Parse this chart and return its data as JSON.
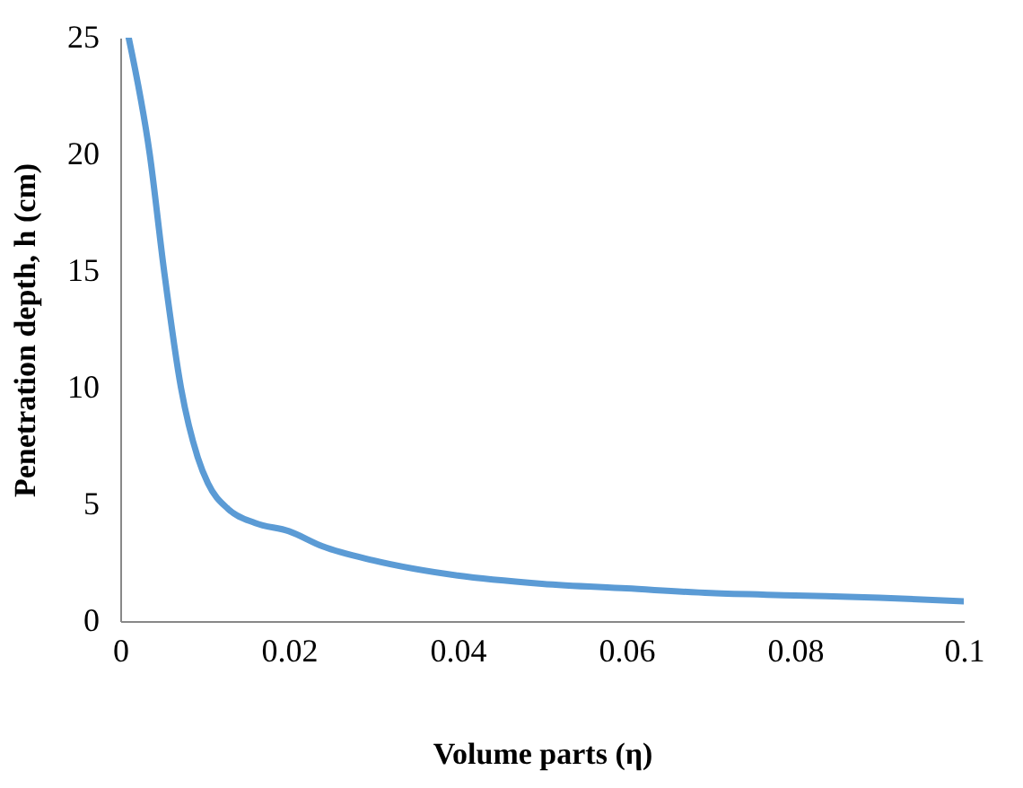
{
  "chart_data": {
    "type": "line",
    "xlabel": "Volume parts (η)",
    "ylabel": "Penetration depth, h (cm)",
    "x": [
      0.001,
      0.0035,
      0.0052,
      0.0072,
      0.0092,
      0.0104,
      0.0128,
      0.016,
      0.02,
      0.024,
      0.03,
      0.04,
      0.05,
      0.06,
      0.07,
      0.08,
      0.09,
      0.1
    ],
    "series": [
      {
        "color": "#5b9bd5",
        "values": [
          25,
          20,
          15,
          10,
          7,
          5.9,
          4.8,
          4.2,
          3.85,
          3.2,
          2.6,
          1.95,
          1.6,
          1.4,
          1.2,
          1.1,
          1.0,
          0.85
        ]
      }
    ],
    "xlim": [
      0,
      0.1
    ],
    "xticks": [
      0,
      0.02,
      0.04,
      0.06,
      0.08,
      0.1
    ],
    "ylim": [
      0,
      25
    ],
    "yticks": [
      0,
      5,
      10,
      15,
      20,
      25
    ],
    "grid": false,
    "legend": false,
    "marker": "none",
    "line_style": "solid"
  }
}
